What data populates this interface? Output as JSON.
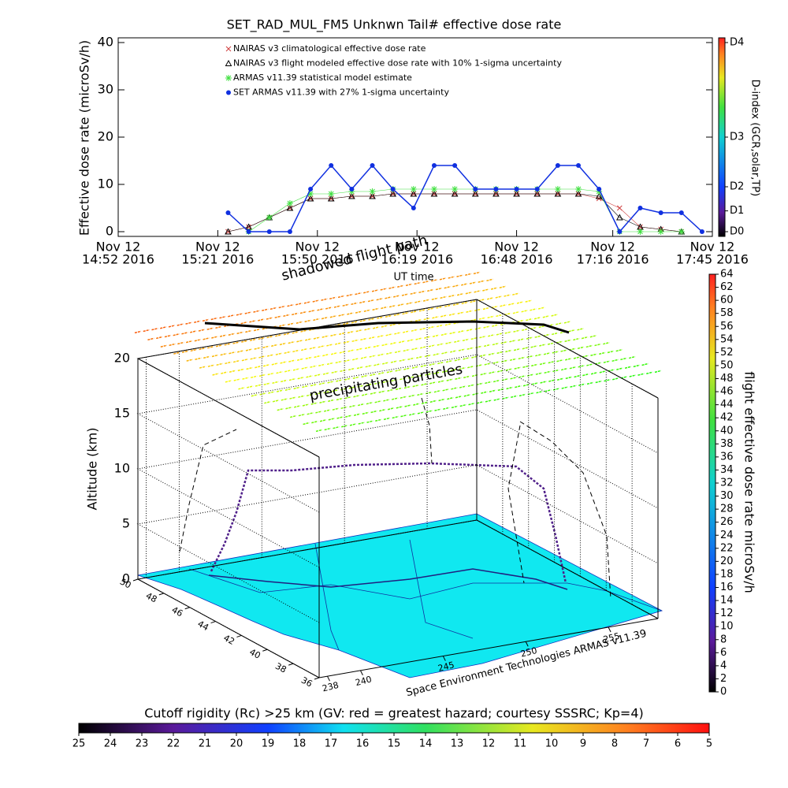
{
  "chart_data": [
    {
      "type": "line",
      "title": "SET_RAD_MUL_FM5 Unknwn Tail#  effective dose rate",
      "y_label": "Effective dose rate (microSv/h)",
      "x_label": "UT time",
      "x": [
        "2016-11-12T15:24",
        "2016-11-12T15:30",
        "2016-11-12T15:36",
        "2016-11-12T15:42",
        "2016-11-12T15:48",
        "2016-11-12T15:54",
        "2016-11-12T16:00",
        "2016-11-12T16:06",
        "2016-11-12T16:12",
        "2016-11-12T16:18",
        "2016-11-12T16:24",
        "2016-11-12T16:30",
        "2016-11-12T16:36",
        "2016-11-12T16:42",
        "2016-11-12T16:48",
        "2016-11-12T16:54",
        "2016-11-12T17:00",
        "2016-11-12T17:06",
        "2016-11-12T17:12",
        "2016-11-12T17:18",
        "2016-11-12T17:24",
        "2016-11-12T17:30",
        "2016-11-12T17:36",
        "2016-11-12T17:42"
      ],
      "series": [
        {
          "name": "NAIRAS v3 climatological effective dose rate",
          "color": "#d04040",
          "marker": "x",
          "values": [
            0,
            1,
            3,
            5,
            7,
            7,
            7.5,
            7.5,
            8,
            8,
            8,
            8,
            8,
            8,
            8,
            8,
            8,
            8,
            7,
            5,
            1,
            0.5,
            0,
            null
          ]
        },
        {
          "name": "NAIRAS v3 flight modeled effective dose rate with 10% 1-sigma uncertainty",
          "color": "#000000",
          "marker": "triangle",
          "values": [
            0,
            1,
            3,
            5,
            7,
            7,
            7.5,
            7.5,
            8,
            8,
            8,
            8,
            8,
            8,
            8,
            8,
            8,
            8,
            7.5,
            3,
            1,
            0.5,
            0,
            null
          ]
        },
        {
          "name": "ARMAS v11.39 statistical model estimate",
          "color": "#40e040",
          "marker": "asterisk",
          "values": [
            null,
            0,
            3,
            6,
            8,
            8,
            8.5,
            8.5,
            9,
            9,
            9,
            9,
            9,
            9,
            9,
            9,
            9,
            9,
            8.5,
            0,
            0,
            0,
            0,
            null
          ]
        },
        {
          "name": "SET ARMAS v11.39 with 27% 1-sigma uncertainty",
          "color": "#1030e0",
          "marker": "circle",
          "values": [
            4,
            0,
            0,
            0,
            9,
            14,
            9,
            14,
            9,
            5,
            14,
            14,
            9,
            9,
            9,
            9,
            14,
            14,
            9,
            0,
            5,
            4,
            4,
            0
          ]
        }
      ],
      "xlim": [
        "2016-11-12T14:52",
        "2016-11-12T17:45"
      ],
      "xticks": [
        {
          "value": "2016-11-12T14:52",
          "label": [
            "Nov 12",
            "14:52 2016"
          ]
        },
        {
          "value": "2016-11-12T15:21",
          "label": [
            "Nov 12",
            "15:21 2016"
          ]
        },
        {
          "value": "2016-11-12T15:50",
          "label": [
            "Nov 12",
            "15:50 2016"
          ]
        },
        {
          "value": "2016-11-12T16:19",
          "label": [
            "Nov 12",
            "16:19 2016"
          ]
        },
        {
          "value": "2016-11-12T16:48",
          "label": [
            "Nov 12",
            "16:48 2016"
          ]
        },
        {
          "value": "2016-11-12T17:16",
          "label": [
            "Nov 12",
            "17:16 2016"
          ]
        },
        {
          "value": "2016-11-12T17:45",
          "label": [
            "Nov 12",
            "17:45 2016"
          ]
        }
      ],
      "ylim": [
        -1,
        41
      ],
      "yticks": [
        0,
        10,
        20,
        30,
        40
      ],
      "colorbar": {
        "label": "D-index (GCR,solar,TP)",
        "ticks": [
          {
            "value": 0,
            "label": "D0"
          },
          {
            "value": 4.4,
            "label": "D1"
          },
          {
            "value": 9.5,
            "label": "D2"
          },
          {
            "value": 20,
            "label": "D3"
          },
          {
            "value": 40,
            "label": "D4"
          }
        ]
      }
    },
    {
      "type": "surface3d",
      "annotations": [
        "shadowed flight path",
        "precipitating particles"
      ],
      "z_label": "Altitude (km)",
      "caption": "Space Environment Technologies ARMAS v11.39",
      "zlim": [
        0,
        20
      ],
      "zticks": [
        0,
        5,
        10,
        15,
        20
      ],
      "ylim": [
        36,
        50
      ],
      "yticks": [
        36,
        38,
        40,
        42,
        44,
        46,
        48,
        50
      ],
      "xlim": [
        237.5,
        258
      ],
      "xticks": [
        238,
        240,
        245,
        250,
        255
      ],
      "colorbar": {
        "label": "flight effective dose rate microSv/h",
        "lim": [
          0,
          64
        ],
        "ticks": [
          0,
          2,
          4,
          6,
          8,
          10,
          12,
          14,
          16,
          18,
          20,
          22,
          24,
          26,
          28,
          30,
          32,
          34,
          36,
          38,
          40,
          42,
          44,
          46,
          48,
          50,
          52,
          54,
          56,
          58,
          60,
          62,
          64
        ]
      }
    },
    {
      "type": "colorbar",
      "title": "Cutoff rigidity (Rc) >25 km (GV: red = greatest hazard; courtesy SSSRC; Kp=4)",
      "lim": [
        25,
        5
      ],
      "ticks": [
        25,
        24,
        23,
        22,
        21,
        20,
        19,
        18,
        17,
        16,
        15,
        14,
        13,
        12,
        11,
        10,
        9,
        8,
        7,
        6,
        5
      ]
    }
  ]
}
